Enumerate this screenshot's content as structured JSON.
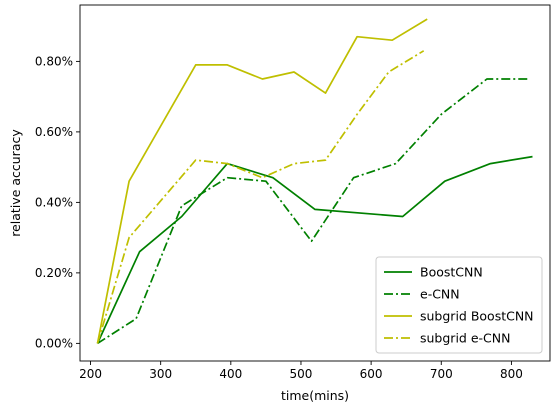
{
  "chart_data": {
    "type": "line",
    "xlabel": "time(mins)",
    "ylabel": "relative accuracy",
    "xlim": [
      185,
      855
    ],
    "ylim": [
      -0.0005,
      0.0096
    ],
    "xticks": [
      200,
      300,
      400,
      500,
      600,
      700,
      800
    ],
    "yticks": [
      0.0,
      0.002,
      0.004,
      0.006,
      0.008
    ],
    "ytick_labels": [
      "0.00%",
      "0.20%",
      "0.40%",
      "0.60%",
      "0.80%"
    ],
    "legend_position": "lower-right",
    "grid": false,
    "series": [
      {
        "name": "BoostCNN",
        "color": "#008000",
        "style": "solid",
        "x": [
          210,
          270,
          330,
          395,
          460,
          520,
          645,
          705,
          770,
          830
        ],
        "y": [
          0.0,
          0.0026,
          0.0036,
          0.0051,
          0.0047,
          0.0038,
          0.0036,
          0.0046,
          0.0051,
          0.0053
        ]
      },
      {
        "name": "e-CNN",
        "color": "#008000",
        "style": "dashdot",
        "x": [
          210,
          265,
          330,
          395,
          450,
          515,
          575,
          635,
          700,
          765,
          825
        ],
        "y": [
          0.0,
          0.0007,
          0.0039,
          0.0047,
          0.0046,
          0.0029,
          0.0047,
          0.0051,
          0.0065,
          0.0075,
          0.0075
        ]
      },
      {
        "name": "subgrid BoostCNN",
        "color": "#bfbf00",
        "style": "solid",
        "x": [
          210,
          255,
          350,
          395,
          445,
          490,
          535,
          580,
          630,
          680
        ],
        "y": [
          0.0,
          0.0046,
          0.0079,
          0.0079,
          0.0075,
          0.0077,
          0.0071,
          0.0087,
          0.0086,
          0.0092
        ]
      },
      {
        "name": "subgrid e-CNN",
        "color": "#bfbf00",
        "style": "dashdot",
        "x": [
          210,
          255,
          350,
          395,
          445,
          490,
          535,
          580,
          625,
          675
        ],
        "y": [
          0.0,
          0.003,
          0.0052,
          0.0051,
          0.0047,
          0.0051,
          0.0052,
          0.0065,
          0.0077,
          0.0083
        ]
      }
    ]
  }
}
